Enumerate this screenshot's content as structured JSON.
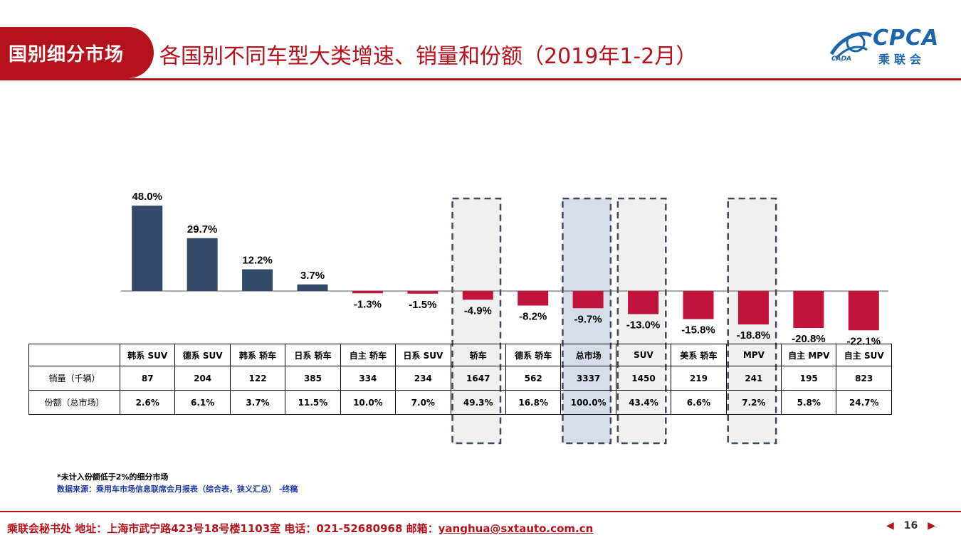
{
  "header": {
    "section_tag": "国别细分市场",
    "title": "各国别不同车型大类增速、销量和份额（2019年1-2月）",
    "logo_text": "CPCA",
    "logo_cn": "乘联会",
    "logo_small": "CADA"
  },
  "chart_data": {
    "type": "bar",
    "categories": [
      "韩系 SUV",
      "德系 SUV",
      "韩系 轿车",
      "日系 轿车",
      "自主 轿车",
      "日系 SUV",
      "轿车",
      "德系 轿车",
      "总市场",
      "SUV",
      "美系 轿车",
      "MPV",
      "自主 MPV",
      "自主 SUV"
    ],
    "values": [
      48.0,
      29.7,
      12.2,
      3.7,
      -1.3,
      -1.5,
      -4.9,
      -8.2,
      -9.7,
      -13.0,
      -15.8,
      -18.8,
      -20.8,
      -22.1
    ],
    "value_labels": [
      "48.0%",
      "29.7%",
      "12.2%",
      "3.7%",
      "-1.3%",
      "-1.5%",
      "-4.9%",
      "-8.2%",
      "-9.7%",
      "-13.0%",
      "-15.8%",
      "-18.8%",
      "-20.8%",
      "-22.1%"
    ],
    "unit": "%",
    "colors": {
      "positive": "#344a6b",
      "negative": "#c0143c"
    },
    "highlighted": [
      "轿车",
      "总市场",
      "SUV",
      "MPV"
    ],
    "highlight_fill": {
      "轿车": "#f0f0f0",
      "总市场": "#d6dde8",
      "SUV": "#f0f0f0",
      "MPV": "#f0f0f0"
    }
  },
  "table": {
    "rows": [
      {
        "label": "销量（千辆）",
        "values": [
          "87",
          "204",
          "122",
          "385",
          "334",
          "234",
          "1647",
          "562",
          "3337",
          "1450",
          "219",
          "241",
          "195",
          "823"
        ]
      },
      {
        "label": "份额（总市场）",
        "values": [
          "2.6%",
          "6.1%",
          "3.7%",
          "11.5%",
          "10.0%",
          "7.0%",
          "49.3%",
          "16.8%",
          "100.0%",
          "43.4%",
          "6.6%",
          "7.2%",
          "5.8%",
          "24.7%"
        ]
      }
    ]
  },
  "notes": {
    "note1": "*未计入份额低于2%的细分市场",
    "source": "数据来源：乘用车市场信息联席会月报表（综合表，狭义汇总） -终稿"
  },
  "footer": {
    "text": "乘联会秘书处   地址：上海市武宁路423号18号楼1103室  电话：021-52680968   邮箱：",
    "email": "yanghua@sxtauto.com.cn",
    "page_number": "16",
    "prev": "◀",
    "next": "▶"
  }
}
